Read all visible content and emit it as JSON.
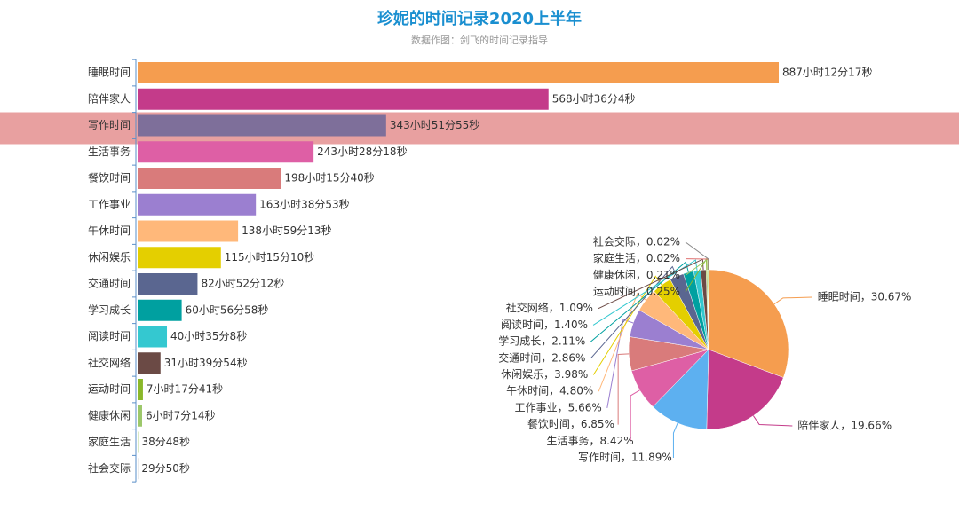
{
  "chart_data": [
    {
      "type": "bar",
      "title": "珍妮的时间记录2020上半年",
      "subtitle": "数据作图：剑飞的时间记录指导",
      "categories": [
        "睡眠时间",
        "陪伴家人",
        "写作时间",
        "生活事务",
        "餐饮时间",
        "工作事业",
        "午休时间",
        "休闲娱乐",
        "交通时间",
        "学习成长",
        "阅读时间",
        "社交网络",
        "运动时间",
        "健康休闲",
        "家庭生活",
        "社会交际"
      ],
      "values": [
        887.2047,
        568.6011,
        343.8653,
        243.4717,
        198.2611,
        163.6481,
        138.9869,
        115.2528,
        82.87,
        60.9494,
        40.5856,
        31.665,
        7.2947,
        6.1206,
        0.6467,
        0.4972
      ],
      "value_labels": [
        "887小时12分17秒",
        "568小时36分4秒",
        "343小时51分55秒",
        "243小时28分18秒",
        "198小时15分40秒",
        "163小时38分53秒",
        "138小时59分13秒",
        "115小时15分10秒",
        "82小时52分12秒",
        "60小时56分58秒",
        "40小时35分8秒",
        "31小时39分54秒",
        "7小时17分41秒",
        "6小时7分14秒",
        "38分48秒",
        "29分50秒"
      ],
      "colors": [
        "#f59d4f",
        "#c43b8a",
        "#7e6f9a",
        "#de5fa5",
        "#d97b7b",
        "#9b7fd0",
        "#ffb87a",
        "#e4cf00",
        "#5a6690",
        "#00a0a0",
        "#34c8d0",
        "#6b4a45",
        "#8ab82a",
        "#9cc86a",
        "#b8d890",
        "#cccccc"
      ],
      "highlight": "写作时间"
    },
    {
      "type": "pie",
      "values": [
        30.67,
        19.66,
        11.89,
        8.42,
        6.85,
        5.66,
        4.8,
        3.98,
        2.86,
        2.11,
        1.4,
        1.09,
        0.25,
        0.21,
        0.02,
        0.02
      ],
      "value_labels": [
        "睡眠时间，30.67%",
        "陪伴家人，19.66%",
        "写作时间，11.89%",
        "生活事务，8.42%",
        "餐饮时间，6.85%",
        "工作事业，5.66%",
        "午休时间，4.80%",
        "休闲娱乐，3.98%",
        "交通时间，2.86%",
        "学习成长，2.11%",
        "阅读时间，1.40%",
        "社交网络，1.09%",
        "运动时间，0.25%",
        "健康休闲，0.21%",
        "家庭生活，0.02%",
        "社会交际，0.02%"
      ],
      "colors": [
        "#f59d4f",
        "#c43b8a",
        "#5db0f0",
        "#de5fa5",
        "#d97b7b",
        "#9b7fd0",
        "#ffb87a",
        "#e4cf00",
        "#5a6690",
        "#00a0a0",
        "#34c8d0",
        "#6b4a45",
        "#8ab82a",
        "#9cc86a",
        "#e07070",
        "#888888"
      ]
    }
  ]
}
